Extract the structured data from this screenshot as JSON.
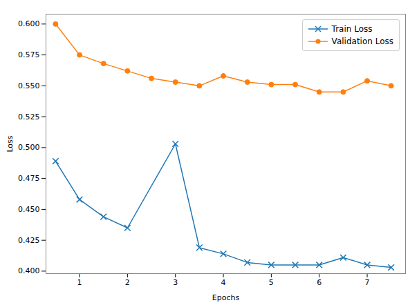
{
  "chart_data": {
    "type": "line",
    "xlabel": "Epochs",
    "ylabel": "Loss",
    "series": [
      {
        "name": "Train Loss",
        "color": "#1f77b4",
        "marker": "x",
        "x": [
          0.5,
          1.0,
          1.5,
          2.0,
          3.0,
          3.5,
          4.0,
          4.5,
          5.0,
          5.5,
          6.0,
          6.5,
          7.0,
          7.5
        ],
        "values": [
          0.489,
          0.458,
          0.444,
          0.435,
          0.503,
          0.419,
          0.414,
          0.407,
          0.405,
          0.405,
          0.405,
          0.411,
          0.405,
          0.403
        ]
      },
      {
        "name": "Validation Loss",
        "color": "#ff7f0e",
        "marker": "circle",
        "x": [
          0.5,
          1.0,
          1.5,
          2.0,
          2.5,
          3.0,
          3.5,
          4.0,
          4.5,
          5.0,
          5.5,
          6.0,
          6.5,
          7.0,
          7.5
        ],
        "values": [
          0.6,
          0.575,
          0.568,
          0.562,
          0.556,
          0.553,
          0.55,
          0.558,
          0.553,
          0.551,
          0.551,
          0.545,
          0.545,
          0.554,
          0.55
        ]
      }
    ],
    "xlim": [
      0.3,
      7.8
    ],
    "ylim": [
      0.398,
      0.608
    ],
    "xticks": [
      1,
      2,
      3,
      4,
      5,
      6,
      7
    ],
    "yticks": [
      {
        "value": 0.4,
        "label": "0.400"
      },
      {
        "value": 0.425,
        "label": "0.425"
      },
      {
        "value": 0.45,
        "label": "0.450"
      },
      {
        "value": 0.475,
        "label": "0.475"
      },
      {
        "value": 0.5,
        "label": "0.500"
      },
      {
        "value": 0.525,
        "label": "0.525"
      },
      {
        "value": 0.55,
        "label": "0.550"
      },
      {
        "value": 0.575,
        "label": "0.575"
      },
      {
        "value": 0.6,
        "label": "0.600"
      }
    ],
    "grid": false,
    "legend": "upper right"
  }
}
